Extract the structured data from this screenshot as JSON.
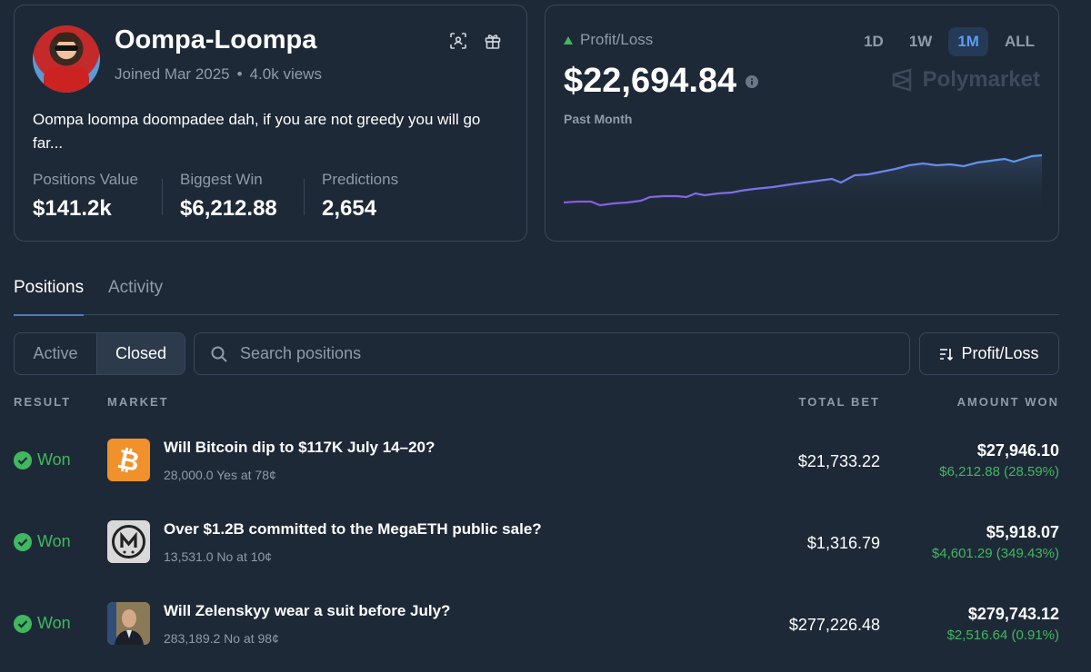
{
  "profile": {
    "username": "Oompa-Loompa",
    "joined": "Joined Mar 2025",
    "views": "4.0k views",
    "bio": "Oompa loompa doompadee dah, if you are not greedy you will go far...",
    "stats": [
      {
        "label": "Positions Value",
        "value": "$141.2k"
      },
      {
        "label": "Biggest Win",
        "value": "$6,212.88"
      },
      {
        "label": "Predictions",
        "value": "2,654"
      }
    ]
  },
  "pnl": {
    "label": "Profit/Loss",
    "value": "$22,694.84",
    "period": "Past Month",
    "timeframes": [
      "1D",
      "1W",
      "1M",
      "ALL"
    ],
    "active_timeframe": "1M",
    "brand": "Polymarket",
    "accent_up": "#3fb85f"
  },
  "tabs": {
    "positions": "Positions",
    "activity": "Activity"
  },
  "filters": {
    "active": "Active",
    "closed": "Closed",
    "search_placeholder": "Search positions",
    "sort": "Profit/Loss"
  },
  "table": {
    "headers": {
      "result": "RESULT",
      "market": "MARKET",
      "total_bet": "TOTAL BET",
      "amount_won": "AMOUNT WON"
    },
    "rows": [
      {
        "result": "Won",
        "title": "Will Bitcoin dip to $117K July 14–20?",
        "sub": "28,000.0 Yes at 78¢",
        "total_bet": "$21,733.22",
        "amount_won": "$27,946.10",
        "gain": "$6,212.88 (28.59%)",
        "icon": "bitcoin-icon"
      },
      {
        "result": "Won",
        "title": "Over $1.2B committed to the MegaETH public sale?",
        "sub": "13,531.0 No at 10¢",
        "total_bet": "$1,316.79",
        "amount_won": "$5,918.07",
        "gain": "$4,601.29 (349.43%)",
        "icon": "megaeth-icon"
      },
      {
        "result": "Won",
        "title": "Will Zelenskyy wear a suit before July?",
        "sub": "283,189.2 No at 98¢",
        "total_bet": "$277,226.48",
        "amount_won": "$279,743.12",
        "gain": "$2,516.64 (0.91%)",
        "icon": "zelenskyy-photo"
      }
    ]
  }
}
